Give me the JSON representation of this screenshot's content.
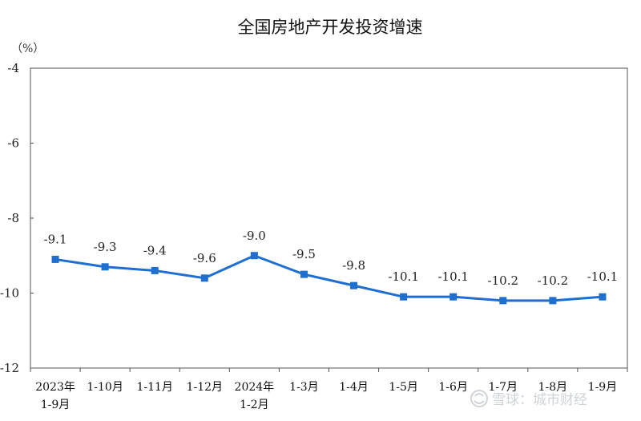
{
  "chart_data": {
    "type": "line",
    "title": "全国房地产开发投资增速",
    "unit": "（%）",
    "ylim": [
      -12,
      -4
    ],
    "yticks": [
      "-4",
      "-6",
      "-8",
      "-10",
      "-12"
    ],
    "ytick_values": [
      -4,
      -6,
      -8,
      -10,
      -12
    ],
    "categories": [
      [
        "2023年",
        "1-9月"
      ],
      [
        "1-10月"
      ],
      [
        "1-11月"
      ],
      [
        "1-12月"
      ],
      [
        "2024年",
        "1-2月"
      ],
      [
        "1-3月"
      ],
      [
        "1-4月"
      ],
      [
        "1-5月"
      ],
      [
        "1-6月"
      ],
      [
        "1-7月"
      ],
      [
        "1-8月"
      ],
      [
        "1-9月"
      ]
    ],
    "values": [
      -9.1,
      -9.3,
      -9.4,
      -9.6,
      -9.0,
      -9.5,
      -9.8,
      -10.1,
      -10.1,
      -10.2,
      -10.2,
      -10.1
    ],
    "data_labels": [
      "-9.1",
      "-9.3",
      "-9.4",
      "-9.6",
      "-9.0",
      "-9.5",
      "-9.8",
      "-10.1",
      "-10.1",
      "-10.2",
      "-10.2",
      "-10.1"
    ],
    "grid": false,
    "line_color": "#1f6fd1"
  },
  "watermark": {
    "text": "雪球：城市财经",
    "icon": "snowball-logo-icon"
  }
}
